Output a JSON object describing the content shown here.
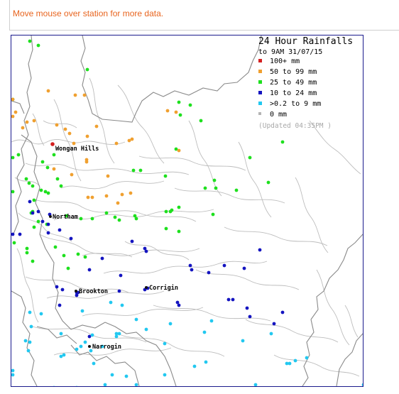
{
  "instruction": "Move mouse over station for more data.",
  "legend": {
    "title": "24 Hour Rainfalls",
    "subtitle": "to 9AM 31/07/15",
    "classes": [
      {
        "label": "100+ mm",
        "color": "#d42020"
      },
      {
        "label": "50  to 99 mm",
        "color": "#f0a030"
      },
      {
        "label": "25  to 49 mm",
        "color": "#1ee01e"
      },
      {
        "label": "10  to 24 mm",
        "color": "#1414c0"
      },
      {
        "label": ">0.2 to 9 mm",
        "color": "#22c8f0"
      },
      {
        "label": "0 mm",
        "color": "#b4b4b4"
      }
    ],
    "updated": "(Updated 04:35PM  )"
  },
  "towns": [
    {
      "name": "Wongan Hills"
    },
    {
      "name": "Northam"
    },
    {
      "name": "Brookton"
    },
    {
      "name": "Corrigin"
    },
    {
      "name": "Narrogin"
    }
  ]
}
